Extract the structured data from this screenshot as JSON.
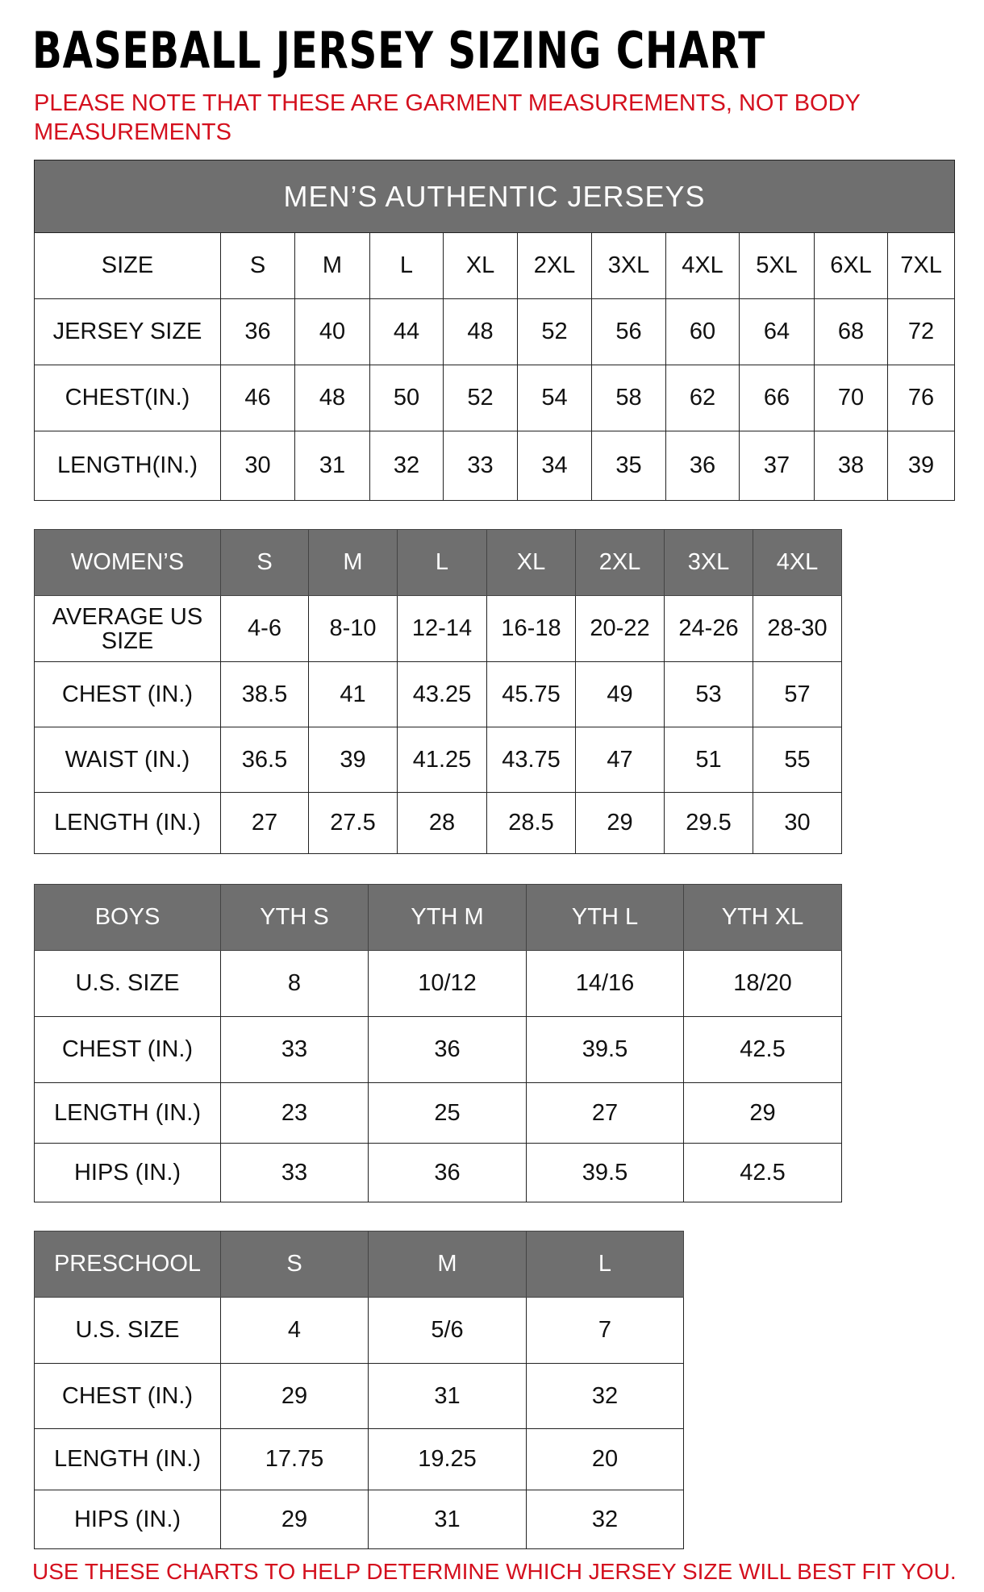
{
  "title": "BASEBALL JERSEY SIZING CHART",
  "note": "PLEASE NOTE THAT THESE ARE GARMENT MEASUREMENTS, NOT BODY MEASUREMENTS",
  "footer": "USE THESE CHARTS TO HELP DETERMINE WHICH JERSEY SIZE WILL BEST FIT YOU.",
  "colors": {
    "header_bg": "#6f6f6f",
    "note_red": "#d4101e"
  },
  "tables": [
    {
      "id": "mens",
      "banner": "MEN’S AUTHENTIC JERSEYS",
      "header": [
        "SIZE",
        "S",
        "M",
        "L",
        "XL",
        "2XL",
        "3XL",
        "4XL",
        "5XL",
        "6XL",
        "7XL"
      ],
      "header_dark": false,
      "rows": [
        [
          "JERSEY SIZE",
          "36",
          "40",
          "44",
          "48",
          "52",
          "56",
          "60",
          "64",
          "68",
          "72"
        ],
        [
          "CHEST(IN.)",
          "46",
          "48",
          "50",
          "52",
          "54",
          "58",
          "62",
          "66",
          "70",
          "76"
        ],
        [
          "LENGTH(IN.)",
          "30",
          "31",
          "32",
          "33",
          "34",
          "35",
          "36",
          "37",
          "38",
          "39"
        ]
      ]
    },
    {
      "id": "womens",
      "header": [
        "WOMEN’S",
        "S",
        "M",
        "L",
        "XL",
        "2XL",
        "3XL",
        "4XL"
      ],
      "header_dark": true,
      "rows": [
        [
          "AVERAGE US SIZE",
          "4-6",
          "8-10",
          "12-14",
          "16-18",
          "20-22",
          "24-26",
          "28-30"
        ],
        [
          "CHEST (IN.)",
          "38.5",
          "41",
          "43.25",
          "45.75",
          "49",
          "53",
          "57"
        ],
        [
          "WAIST (IN.)",
          "36.5",
          "39",
          "41.25",
          "43.75",
          "47",
          "51",
          "55"
        ],
        [
          "LENGTH (IN.)",
          "27",
          "27.5",
          "28",
          "28.5",
          "29",
          "29.5",
          "30"
        ]
      ]
    },
    {
      "id": "boys",
      "header": [
        "BOYS",
        "YTH S",
        "YTH M",
        "YTH L",
        "YTH XL"
      ],
      "header_dark": true,
      "rows": [
        [
          "U.S. SIZE",
          "8",
          "10/12",
          "14/16",
          "18/20"
        ],
        [
          "CHEST (IN.)",
          "33",
          "36",
          "39.5",
          "42.5"
        ],
        [
          "LENGTH (IN.)",
          "23",
          "25",
          "27",
          "29"
        ],
        [
          "HIPS (IN.)",
          "33",
          "36",
          "39.5",
          "42.5"
        ]
      ]
    },
    {
      "id": "preschool",
      "header": [
        "PRESCHOOL",
        "S",
        "M",
        "L"
      ],
      "header_dark": true,
      "rows": [
        [
          "U.S. SIZE",
          "4",
          "5/6",
          "7"
        ],
        [
          "CHEST (IN.)",
          "29",
          "31",
          "32"
        ],
        [
          "LENGTH (IN.)",
          "17.75",
          "19.25",
          "20"
        ],
        [
          "HIPS (IN.)",
          "29",
          "31",
          "32"
        ]
      ]
    }
  ]
}
